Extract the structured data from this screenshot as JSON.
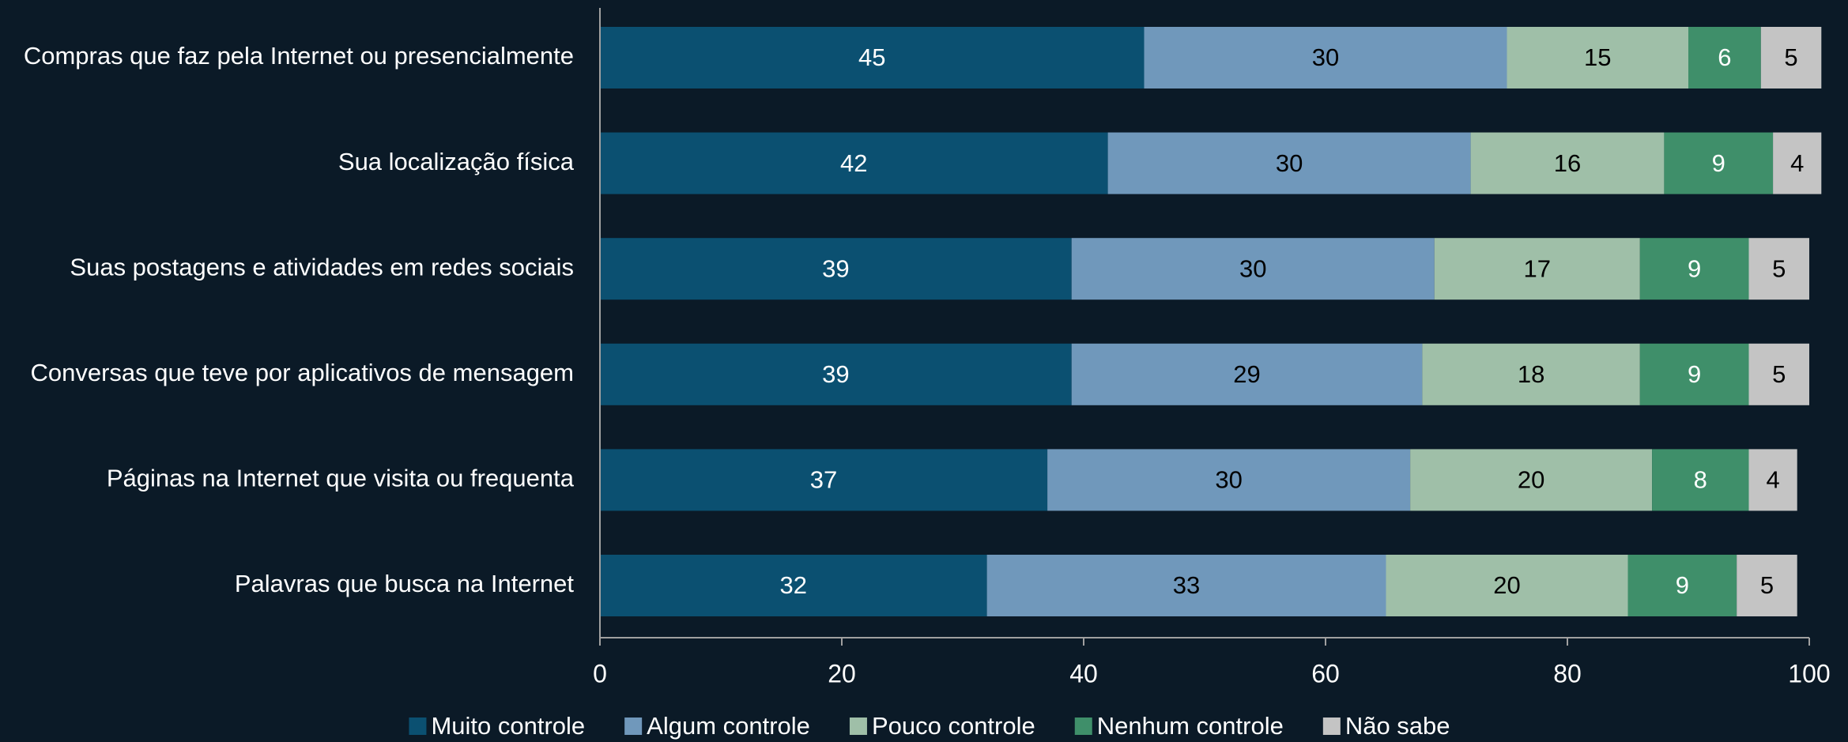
{
  "chart_data": {
    "type": "stacked-barh",
    "categories": [
      "Compras que faz pela Internet ou presencialmente",
      "Sua localização física",
      "Suas postagens e atividades em redes sociais",
      "Conversas que teve por aplicativos de mensagem",
      "Páginas na Internet que visita ou frequenta",
      "Palavras que busca na Internet"
    ],
    "series": [
      {
        "name": "Muito controle",
        "color": "#0b5071",
        "values": [
          45,
          42,
          39,
          39,
          37,
          32
        ]
      },
      {
        "name": "Algum controle",
        "color": "#7098bb",
        "values": [
          30,
          30,
          30,
          29,
          30,
          33
        ]
      },
      {
        "name": "Pouco controle",
        "color": "#9fbfa8",
        "values": [
          15,
          16,
          17,
          18,
          20,
          20
        ]
      },
      {
        "name": "Nenhum controle",
        "color": "#3f8f6a",
        "values": [
          6,
          9,
          9,
          9,
          8,
          9
        ]
      },
      {
        "name": "Não sabe",
        "color": "#c4c4c4",
        "values": [
          5,
          4,
          5,
          5,
          4,
          5
        ]
      }
    ],
    "xlim": [
      0,
      100
    ],
    "xticks": [
      0,
      20,
      40,
      60,
      80,
      100
    ],
    "legend": "bottom"
  }
}
